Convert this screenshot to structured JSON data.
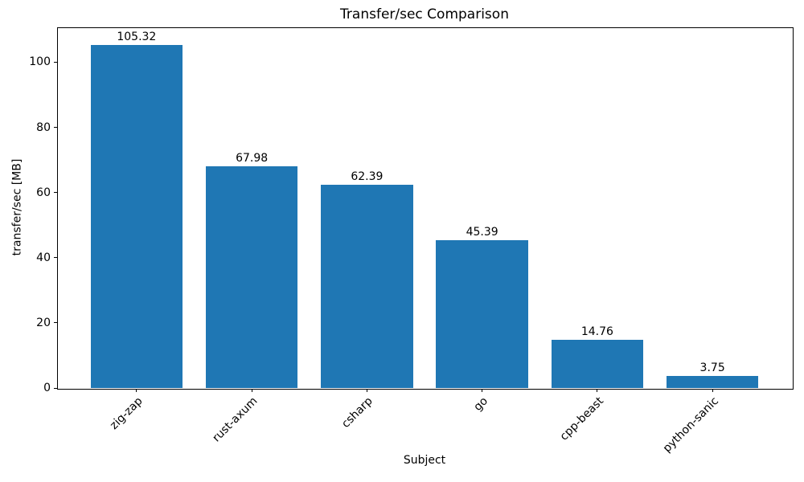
{
  "figure": {
    "title": "Transfer/sec Comparison",
    "xlabel": "Subject",
    "ylabel": "transfer/sec [MB]"
  },
  "chart_data": {
    "type": "bar",
    "title": "Transfer/sec Comparison",
    "xlabel": "Subject",
    "ylabel": "transfer/sec [MB]",
    "categories": [
      "zig-zap",
      "rust-axum",
      "csharp",
      "go",
      "cpp-beast",
      "python-sanic"
    ],
    "values": [
      105.32,
      67.98,
      62.39,
      45.39,
      14.76,
      3.75
    ],
    "value_labels": [
      "105.32",
      "67.98",
      "62.39",
      "45.39",
      "14.76",
      "3.75"
    ],
    "yticks": [
      0,
      20,
      40,
      60,
      80,
      100
    ],
    "ylim": [
      0,
      110.7
    ],
    "xtick_rotation_deg": 45,
    "bar_color": "#1f77b4",
    "text_color": "#000000",
    "grid": false,
    "legend_position": "none"
  }
}
